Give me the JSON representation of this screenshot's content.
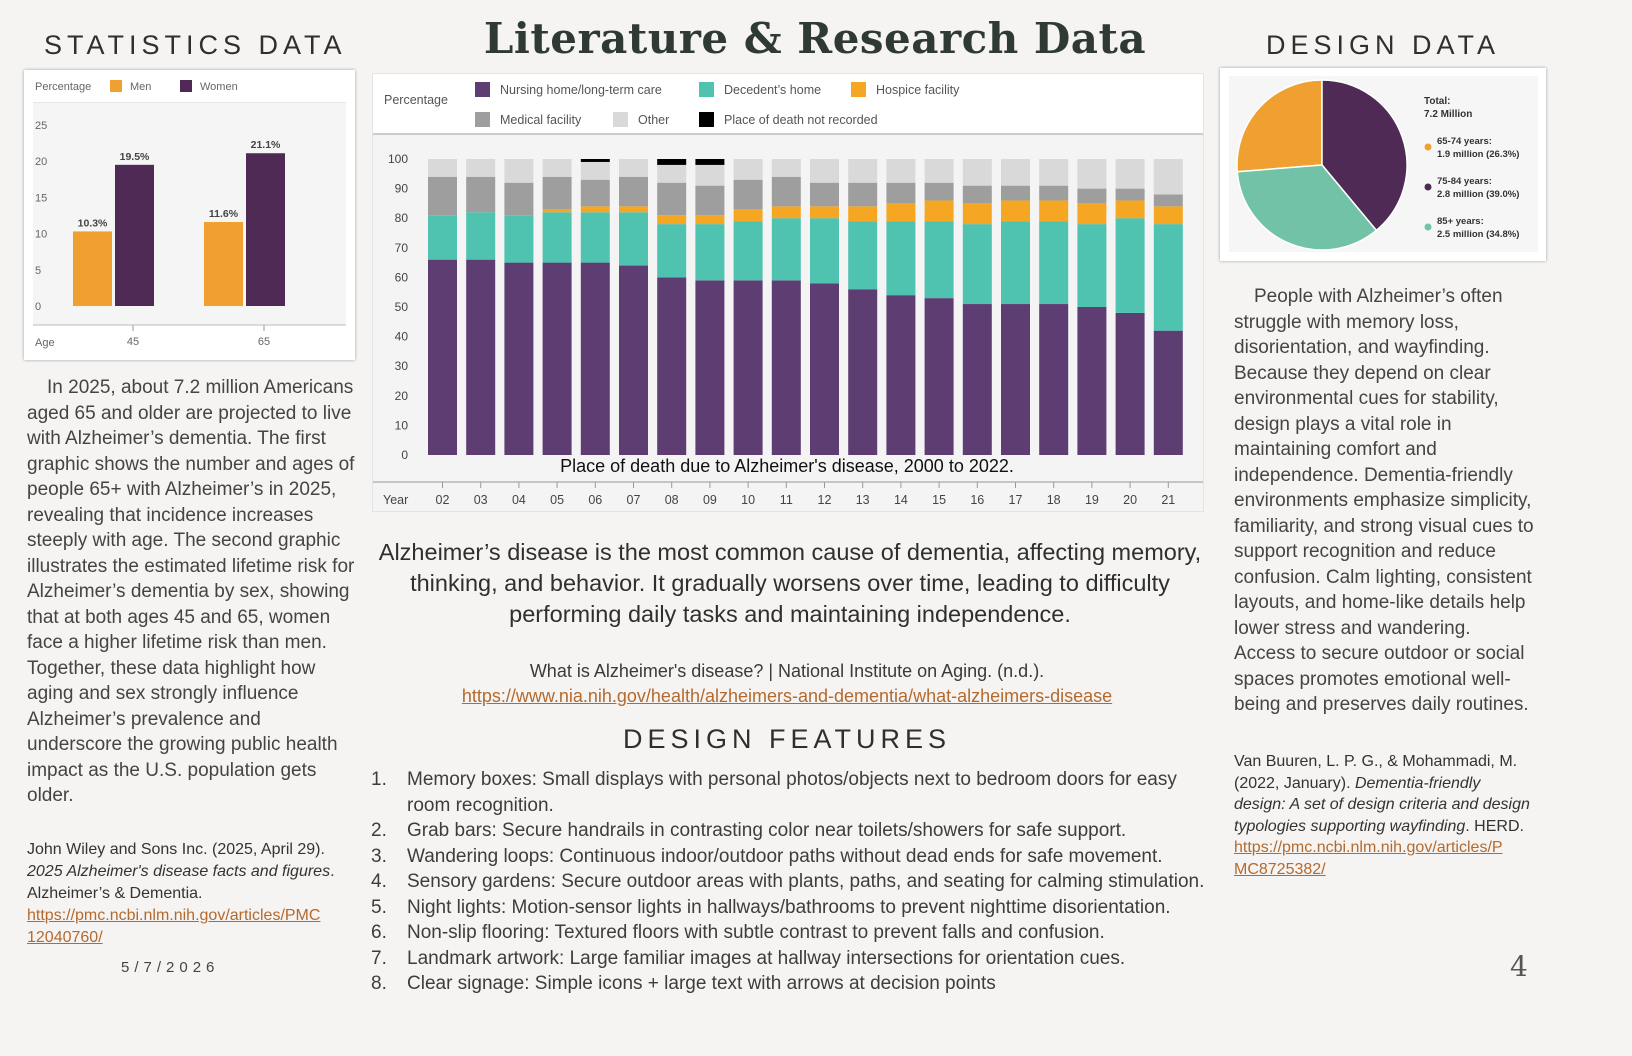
{
  "title": "Literature & Research Data",
  "left": {
    "heading": "STATISTICS DATA",
    "paragraph": "In 2025, about 7.2 million Americans aged 65 and older are projected to live with Alzheimer’s dementia. The first graphic shows the number and ages of people 65+ with Alzheimer’s in 2025, revealing that incidence increases steeply with age. The second graphic illustrates the estimated lifetime risk for Alzheimer’s dementia by sex, showing that at both ages 45 and 65, women face a higher lifetime risk than men. Together, these data highlight how aging and sex strongly influence Alzheimer’s prevalence and underscore the growing public health impact as the U.S. population gets older.",
    "citation": {
      "author": "John Wiley and Sons Inc. (2025, April 29).",
      "title": "2025 Alzheimer's disease facts and figures",
      "after_title": ".",
      "journal": "Alzheimer’s & Dementia.",
      "url_line1": "https://pmc.ncbi.nlm.nih.gov/articles/PMC",
      "url_line2": "12040760/"
    },
    "date": "5/7/2026"
  },
  "center": {
    "chart_caption": "Place of death due to Alzheimer's disease, 2000 to 2022.",
    "summary": "Alzheimer’s disease is the most common cause of dementia, affecting memory, thinking, and behavior. It gradually worsens over time, leading to difficulty performing daily tasks and maintaining independence.",
    "source": "What is Alzheimer's disease? | National Institute on Aging. (n.d.).",
    "source_url": "https://www.nia.nih.gov/health/alzheimers-and-dementia/what-alzheimers-disease",
    "features_heading": "DESIGN FEATURES",
    "features": [
      {
        "num": "1.",
        "text": "Memory boxes: Small displays with personal photos/objects next to bedroom doors for easy room recognition."
      },
      {
        "num": "2.",
        "text": "Grab bars: Secure handrails in contrasting color near toilets/showers for safe support."
      },
      {
        "num": "3.",
        "text": "Wandering loops: Continuous indoor/outdoor paths without dead ends for safe movement."
      },
      {
        "num": "4.",
        "text": "Sensory gardens: Secure outdoor areas with plants, paths, and seating for calming stimulation."
      },
      {
        "num": "5.",
        "text": "Night lights: Motion-sensor lights in hallways/bathrooms to prevent nighttime disorientation."
      },
      {
        "num": "6.",
        "text": "Non-slip flooring: Textured floors with subtle contrast to prevent falls and confusion."
      },
      {
        "num": "7.",
        "text": "Landmark artwork: Large familiar images at hallway intersections for orientation cues."
      },
      {
        "num": "8.",
        "text": "Clear signage: Simple icons + large text with arrows at decision points"
      }
    ]
  },
  "right": {
    "heading": "DESIGN DATA",
    "paragraph": "People with Alzheimer’s often struggle with memory loss, disorientation, and wayfinding. Because they depend on clear environmental cues for stability, design plays a vital role in maintaining comfort and independence. Dementia-friendly environments emphasize simplicity, familiarity, and strong visual cues to support recognition and reduce confusion. Calm lighting, consistent layouts, and home-like details help lower stress and wandering. Access to secure outdoor or social spaces promotes emotional well-being and preserves daily routines.",
    "citation": {
      "author": "Van Buuren, L. P. G., & Mohammadi, M. (2022, January).",
      "title": "Dementia-friendly design: A set of design criteria and design typologies supporting wayfinding",
      "after_title": ". HERD.",
      "url_line1": "https://pmc.ncbi.nlm.nih.gov/articles/P",
      "url_line2": "MC8725382/"
    }
  },
  "page_number": "4",
  "chart_data": [
    {
      "type": "bar",
      "ylabel": "Percentage",
      "xlabel": "Age",
      "categories": [
        "45",
        "65"
      ],
      "ylim": [
        0,
        25
      ],
      "yticks": [
        "0",
        "5",
        "10",
        "15",
        "20",
        "25"
      ],
      "series": [
        {
          "name": "Men",
          "color": "#f0a030",
          "values": [
            10.3,
            11.6
          ],
          "labels": [
            "10.3%",
            "11.6%"
          ]
        },
        {
          "name": "Women",
          "color": "#4e2a55",
          "values": [
            19.5,
            21.1
          ],
          "labels": [
            "19.5%",
            "21.1%"
          ]
        }
      ],
      "legend": "top-left"
    },
    {
      "type": "bar",
      "stacked": true,
      "ylabel": "Percentage",
      "xlabel": "Year",
      "ylim": [
        0,
        100
      ],
      "yticks": [
        "0",
        "10",
        "20",
        "30",
        "40",
        "50",
        "60",
        "70",
        "80",
        "90",
        "100"
      ],
      "categories": [
        "02",
        "03",
        "04",
        "05",
        "06",
        "07",
        "08",
        "09",
        "10",
        "11",
        "12",
        "13",
        "14",
        "15",
        "16",
        "17",
        "18",
        "19",
        "20",
        "21"
      ],
      "legend": "top",
      "series": [
        {
          "name": "Nursing home/long-term care",
          "color": "#5e3d73",
          "values": [
            66,
            66,
            65,
            65,
            65,
            64,
            60,
            59,
            59,
            59,
            58,
            56,
            54,
            53,
            51,
            51,
            51,
            50,
            48,
            42
          ]
        },
        {
          "name": "Decedent’s home",
          "color": "#4fc2b0",
          "values": [
            15,
            16,
            16,
            17,
            17,
            18,
            18,
            19,
            20,
            21,
            22,
            23,
            25,
            26,
            27,
            28,
            28,
            28,
            32,
            36
          ]
        },
        {
          "name": "Hospice facility",
          "color": "#f5a623",
          "values": [
            0,
            0,
            0,
            1,
            2,
            2,
            3,
            3,
            4,
            4,
            4,
            5,
            6,
            7,
            7,
            7,
            7,
            7,
            6,
            6
          ]
        },
        {
          "name": "Medical facility",
          "color": "#9e9e9e",
          "values": [
            13,
            12,
            11,
            11,
            9,
            10,
            11,
            10,
            10,
            10,
            8,
            8,
            7,
            6,
            6,
            5,
            5,
            5,
            4,
            4
          ]
        },
        {
          "name": "Other",
          "color": "#d9d9d9",
          "values": [
            6,
            6,
            8,
            6,
            6,
            6,
            6,
            7,
            7,
            6,
            8,
            8,
            8,
            8,
            9,
            9,
            9,
            10,
            10,
            12
          ]
        },
        {
          "name": "Place of death not recorded",
          "color": "#000000",
          "values": [
            0,
            0,
            0,
            0,
            1,
            0,
            2,
            2,
            0,
            0,
            0,
            0,
            0,
            0,
            0,
            0,
            0,
            0,
            0,
            0
          ]
        }
      ]
    },
    {
      "type": "pie",
      "total_label": "Total:",
      "total_value": "7.2 Million",
      "slices": [
        {
          "name": "65-74 years:",
          "detail": "1.9 million (26.3%)",
          "value": 26.3,
          "color": "#f0a030"
        },
        {
          "name": "75-84 years:",
          "detail": "2.8 million (39.0%)",
          "value": 39.0,
          "color": "#4e2a55"
        },
        {
          "name": "85+ years:",
          "detail": "2.5 million (34.8%)",
          "value": 34.8,
          "color": "#72c2a8"
        }
      ]
    }
  ]
}
